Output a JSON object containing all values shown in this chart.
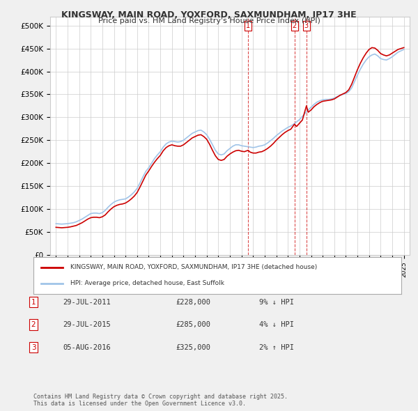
{
  "title1": "KINGSWAY, MAIN ROAD, YOXFORD, SAXMUNDHAM, IP17 3HE",
  "title2": "Price paid vs. HM Land Registry's House Price Index (HPI)",
  "ylabel_ticks": [
    "£0",
    "£50K",
    "£100K",
    "£150K",
    "£200K",
    "£250K",
    "£300K",
    "£350K",
    "£400K",
    "£450K",
    "£500K"
  ],
  "ytick_vals": [
    0,
    50000,
    100000,
    150000,
    200000,
    250000,
    300000,
    350000,
    400000,
    450000,
    500000
  ],
  "ylim": [
    0,
    520000
  ],
  "xlim_start": 1994.5,
  "xlim_end": 2025.5,
  "bg_color": "#f0f0f0",
  "plot_bg_color": "#ffffff",
  "grid_color": "#cccccc",
  "red_color": "#cc0000",
  "blue_color": "#a0c4e8",
  "legend_label_red": "KINGSWAY, MAIN ROAD, YOXFORD, SAXMUNDHAM, IP17 3HE (detached house)",
  "legend_label_blue": "HPI: Average price, detached house, East Suffolk",
  "sale_markers": [
    {
      "date_num": 2011.57,
      "price": 228000,
      "label": "1"
    },
    {
      "date_num": 2015.57,
      "price": 285000,
      "label": "2"
    },
    {
      "date_num": 2016.6,
      "price": 325000,
      "label": "3"
    }
  ],
  "table_rows": [
    {
      "num": "1",
      "date": "29-JUL-2011",
      "price": "£228,000",
      "change": "9% ↓ HPI"
    },
    {
      "num": "2",
      "date": "29-JUL-2015",
      "price": "£285,000",
      "change": "4% ↓ HPI"
    },
    {
      "num": "3",
      "date": "05-AUG-2016",
      "price": "£325,000",
      "change": "2% ↑ HPI"
    }
  ],
  "footer": "Contains HM Land Registry data © Crown copyright and database right 2025.\nThis data is licensed under the Open Government Licence v3.0.",
  "hpi_data": {
    "years": [
      1995,
      1995.25,
      1995.5,
      1995.75,
      1996,
      1996.25,
      1996.5,
      1996.75,
      1997,
      1997.25,
      1997.5,
      1997.75,
      1998,
      1998.25,
      1998.5,
      1998.75,
      1999,
      1999.25,
      1999.5,
      1999.75,
      2000,
      2000.25,
      2000.5,
      2000.75,
      2001,
      2001.25,
      2001.5,
      2001.75,
      2002,
      2002.25,
      2002.5,
      2002.75,
      2003,
      2003.25,
      2003.5,
      2003.75,
      2004,
      2004.25,
      2004.5,
      2004.75,
      2005,
      2005.25,
      2005.5,
      2005.75,
      2006,
      2006.25,
      2006.5,
      2006.75,
      2007,
      2007.25,
      2007.5,
      2007.75,
      2008,
      2008.25,
      2008.5,
      2008.75,
      2009,
      2009.25,
      2009.5,
      2009.75,
      2010,
      2010.25,
      2010.5,
      2010.75,
      2011,
      2011.25,
      2011.5,
      2011.75,
      2012,
      2012.25,
      2012.5,
      2012.75,
      2013,
      2013.25,
      2013.5,
      2013.75,
      2014,
      2014.25,
      2014.5,
      2014.75,
      2015,
      2015.25,
      2015.5,
      2015.75,
      2016,
      2016.25,
      2016.5,
      2016.75,
      2017,
      2017.25,
      2017.5,
      2017.75,
      2018,
      2018.25,
      2018.5,
      2018.75,
      2019,
      2019.25,
      2019.5,
      2019.75,
      2020,
      2020.25,
      2020.5,
      2020.75,
      2021,
      2021.25,
      2021.5,
      2021.75,
      2022,
      2022.25,
      2022.5,
      2022.75,
      2023,
      2023.25,
      2023.5,
      2023.75,
      2024,
      2024.25,
      2024.5,
      2024.75,
      2025
    ],
    "values": [
      68000,
      67500,
      67000,
      67500,
      68000,
      69000,
      70000,
      72000,
      75000,
      78000,
      82000,
      86000,
      90000,
      91000,
      91000,
      90000,
      92000,
      97000,
      104000,
      110000,
      115000,
      118000,
      120000,
      121000,
      122000,
      126000,
      131000,
      137000,
      145000,
      157000,
      170000,
      182000,
      190000,
      200000,
      210000,
      218000,
      225000,
      235000,
      242000,
      246000,
      248000,
      247000,
      246000,
      247000,
      250000,
      255000,
      260000,
      265000,
      268000,
      271000,
      272000,
      268000,
      262000,
      252000,
      240000,
      228000,
      220000,
      218000,
      220000,
      227000,
      232000,
      237000,
      240000,
      240000,
      238000,
      237000,
      236000,
      235000,
      234000,
      235000,
      237000,
      238000,
      240000,
      244000,
      249000,
      254000,
      260000,
      265000,
      270000,
      274000,
      278000,
      281000,
      285000,
      290000,
      295000,
      302000,
      309000,
      316000,
      322000,
      328000,
      333000,
      336000,
      338000,
      339000,
      339000,
      340000,
      342000,
      345000,
      348000,
      350000,
      352000,
      356000,
      364000,
      378000,
      392000,
      405000,
      416000,
      425000,
      432000,
      436000,
      438000,
      434000,
      428000,
      426000,
      425000,
      428000,
      432000,
      437000,
      442000,
      445000,
      448000
    ]
  },
  "price_data": {
    "years": [
      1995,
      1995.25,
      1995.5,
      1995.75,
      1996,
      1996.25,
      1996.5,
      1996.75,
      1997,
      1997.25,
      1997.5,
      1997.75,
      1998,
      1998.25,
      1998.5,
      1998.75,
      1999,
      1999.25,
      1999.5,
      1999.75,
      2000,
      2000.25,
      2000.5,
      2000.75,
      2001,
      2001.25,
      2001.5,
      2001.75,
      2002,
      2002.25,
      2002.5,
      2002.75,
      2003,
      2003.25,
      2003.5,
      2003.75,
      2004,
      2004.25,
      2004.5,
      2004.75,
      2005,
      2005.25,
      2005.5,
      2005.75,
      2006,
      2006.25,
      2006.5,
      2006.75,
      2007,
      2007.25,
      2007.5,
      2007.75,
      2008,
      2008.25,
      2008.5,
      2008.75,
      2009,
      2009.25,
      2009.5,
      2009.75,
      2010,
      2010.25,
      2010.5,
      2010.75,
      2011,
      2011.25,
      2011.57,
      2011.75,
      2012,
      2012.25,
      2012.5,
      2012.75,
      2013,
      2013.25,
      2013.5,
      2013.75,
      2014,
      2014.25,
      2014.5,
      2014.75,
      2015,
      2015.25,
      2015.57,
      2015.75,
      2016,
      2016.25,
      2016.6,
      2016.75,
      2017,
      2017.25,
      2017.5,
      2017.75,
      2018,
      2018.25,
      2018.5,
      2018.75,
      2019,
      2019.25,
      2019.5,
      2019.75,
      2020,
      2020.25,
      2020.5,
      2020.75,
      2021,
      2021.25,
      2021.5,
      2021.75,
      2022,
      2022.25,
      2022.5,
      2022.75,
      2023,
      2023.25,
      2023.5,
      2023.75,
      2024,
      2024.25,
      2024.5,
      2024.75,
      2025
    ],
    "values": [
      60000,
      59500,
      59000,
      59500,
      60000,
      61000,
      62500,
      64000,
      67000,
      70000,
      74000,
      78000,
      81000,
      82000,
      82000,
      81000,
      83000,
      87000,
      94000,
      100000,
      105000,
      108000,
      110000,
      111000,
      113000,
      117000,
      122000,
      128000,
      136000,
      148000,
      161000,
      174000,
      183000,
      193000,
      202000,
      210000,
      217000,
      227000,
      234000,
      238000,
      240000,
      238000,
      237000,
      237000,
      240000,
      245000,
      250000,
      255000,
      258000,
      261000,
      262000,
      258000,
      252000,
      241000,
      228000,
      216000,
      208000,
      206000,
      208000,
      215000,
      220000,
      224000,
      227000,
      228000,
      226000,
      225000,
      228000,
      224000,
      222000,
      222000,
      224000,
      225000,
      228000,
      232000,
      237000,
      243000,
      250000,
      256000,
      262000,
      267000,
      271000,
      274000,
      285000,
      280000,
      287000,
      294000,
      325000,
      311000,
      316000,
      323000,
      328000,
      332000,
      335000,
      336000,
      337000,
      338000,
      340000,
      344000,
      348000,
      351000,
      354000,
      360000,
      372000,
      388000,
      404000,
      418000,
      430000,
      440000,
      448000,
      452000,
      451000,
      446000,
      439000,
      436000,
      434000,
      436000,
      440000,
      444000,
      448000,
      450000,
      452000
    ]
  }
}
